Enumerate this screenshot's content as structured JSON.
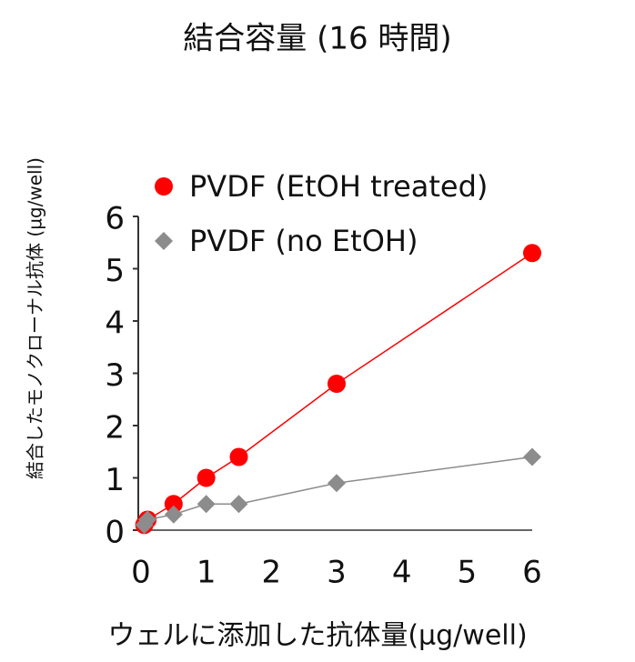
{
  "chart_data": {
    "type": "line",
    "title": "結合容量 (16 時間)",
    "xlabel": "ウェルに添加した抗体量(µg/well)",
    "ylabel": "結合したモノクローナル抗体 (µg/well)",
    "xlim": [
      0,
      6
    ],
    "ylim": [
      0,
      6
    ],
    "xticks": [
      0,
      1,
      2,
      3,
      4,
      5,
      6
    ],
    "yticks": [
      0,
      1,
      2,
      3,
      4,
      5,
      6
    ],
    "grid": false,
    "legend": "upper left",
    "series": [
      {
        "name": "PVDF (EtOH treated)",
        "color": "#ff0000",
        "marker": "circle",
        "x": [
          0.05,
          0.1,
          0.5,
          1,
          1.5,
          3,
          6
        ],
        "values": [
          0.1,
          0.2,
          0.5,
          1.0,
          1.4,
          2.8,
          5.3
        ]
      },
      {
        "name": "PVDF (no EtOH)",
        "color": "#8c8c8c",
        "marker": "diamond",
        "x": [
          0.05,
          0.1,
          0.5,
          1,
          1.5,
          3,
          6
        ],
        "values": [
          0.1,
          0.2,
          0.3,
          0.5,
          0.5,
          0.9,
          1.4
        ]
      }
    ]
  }
}
